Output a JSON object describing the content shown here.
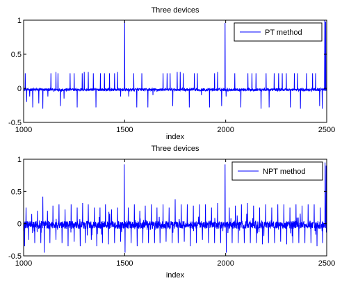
{
  "chart_data": [
    {
      "type": "line",
      "title": "Three devices",
      "xlabel": "index",
      "ylabel": "",
      "xlim": [
        1000,
        2500
      ],
      "ylim": [
        -0.5,
        1
      ],
      "xticks": [
        1000,
        1500,
        2000,
        2500
      ],
      "yticks": [
        -0.5,
        0,
        0.5,
        1
      ],
      "xtick_labels": [
        "1000",
        "1500",
        "2000",
        "2500"
      ],
      "ytick_labels": [
        "-0.5",
        "0",
        "0.5",
        "1"
      ],
      "legend_position": "top-right",
      "grid": false,
      "series": [
        {
          "name": "PT method",
          "color": "#0000ff",
          "baseline": -0.02,
          "noise": 0.02,
          "spikes": [
            [
              1008,
              0.22
            ],
            [
              1015,
              -0.2
            ],
            [
              1030,
              -0.12
            ],
            [
              1045,
              -0.28
            ],
            [
              1075,
              -0.22
            ],
            [
              1095,
              -0.3
            ],
            [
              1120,
              -0.12
            ],
            [
              1135,
              0.22
            ],
            [
              1150,
              -0.05
            ],
            [
              1160,
              0.24
            ],
            [
              1170,
              0.22
            ],
            [
              1182,
              -0.26
            ],
            [
              1200,
              -0.15
            ],
            [
              1230,
              0.22
            ],
            [
              1250,
              0.22
            ],
            [
              1265,
              -0.28
            ],
            [
              1290,
              0.22
            ],
            [
              1300,
              0.24
            ],
            [
              1320,
              0.24
            ],
            [
              1345,
              0.22
            ],
            [
              1358,
              -0.28
            ],
            [
              1380,
              0.22
            ],
            [
              1400,
              0.22
            ],
            [
              1425,
              0.22
            ],
            [
              1450,
              0.22
            ],
            [
              1465,
              0.24
            ],
            [
              1480,
              -0.12
            ],
            [
              1500,
              1.0
            ],
            [
              1520,
              -0.12
            ],
            [
              1545,
              0.22
            ],
            [
              1560,
              -0.28
            ],
            [
              1585,
              0.22
            ],
            [
              1615,
              -0.28
            ],
            [
              1640,
              -0.1
            ],
            [
              1660,
              -0.05
            ],
            [
              1690,
              0.22
            ],
            [
              1710,
              0.22
            ],
            [
              1725,
              0.22
            ],
            [
              1738,
              -0.26
            ],
            [
              1760,
              0.24
            ],
            [
              1775,
              0.24
            ],
            [
              1790,
              0.22
            ],
            [
              1820,
              -0.28
            ],
            [
              1845,
              0.22
            ],
            [
              1860,
              0.22
            ],
            [
              1880,
              -0.1
            ],
            [
              1920,
              -0.28
            ],
            [
              1945,
              0.22
            ],
            [
              1960,
              0.24
            ],
            [
              1980,
              -0.26
            ],
            [
              1997,
              0.96
            ],
            [
              2002,
              -0.12
            ],
            [
              2045,
              0.22
            ],
            [
              2075,
              -0.28
            ],
            [
              2110,
              0.22
            ],
            [
              2130,
              0.22
            ],
            [
              2150,
              0.22
            ],
            [
              2175,
              -0.3
            ],
            [
              2200,
              0.22
            ],
            [
              2215,
              -0.28
            ],
            [
              2240,
              0.22
            ],
            [
              2262,
              0.22
            ],
            [
              2280,
              0.22
            ],
            [
              2300,
              0.22
            ],
            [
              2320,
              -0.28
            ],
            [
              2340,
              0.22
            ],
            [
              2355,
              0.22
            ],
            [
              2370,
              -0.3
            ],
            [
              2400,
              0.22
            ],
            [
              2430,
              0.22
            ],
            [
              2445,
              0.22
            ],
            [
              2465,
              -0.26
            ],
            [
              2478,
              -0.3
            ],
            [
              2490,
              1.0
            ],
            [
              2495,
              0.98
            ]
          ]
        }
      ]
    },
    {
      "type": "line",
      "title": "Three devices",
      "xlabel": "index",
      "ylabel": "",
      "xlim": [
        1000,
        2500
      ],
      "ylim": [
        -0.5,
        1
      ],
      "xticks": [
        1000,
        1500,
        2000,
        2500
      ],
      "yticks": [
        -0.5,
        0,
        0.5,
        1
      ],
      "xtick_labels": [
        "1000",
        "1500",
        "2000",
        "2500"
      ],
      "ytick_labels": [
        "-0.5",
        "0",
        "0.5",
        "1"
      ],
      "legend_position": "top-right",
      "grid": false,
      "series": [
        {
          "name": "NPT method",
          "color": "#0000ff",
          "baseline": -0.02,
          "noise": 0.06,
          "spikes": [
            [
              1005,
              -0.35
            ],
            [
              1012,
              0.25
            ],
            [
              1025,
              -0.25
            ],
            [
              1040,
              0.15
            ],
            [
              1055,
              -0.3
            ],
            [
              1068,
              0.2
            ],
            [
              1085,
              -0.3
            ],
            [
              1095,
              0.42
            ],
            [
              1102,
              -0.45
            ],
            [
              1118,
              0.2
            ],
            [
              1130,
              -0.3
            ],
            [
              1145,
              0.28
            ],
            [
              1160,
              -0.25
            ],
            [
              1175,
              0.3
            ],
            [
              1190,
              -0.3
            ],
            [
              1205,
              0.22
            ],
            [
              1220,
              -0.35
            ],
            [
              1235,
              0.3
            ],
            [
              1250,
              -0.28
            ],
            [
              1265,
              0.25
            ],
            [
              1280,
              -0.35
            ],
            [
              1292,
              0.32
            ],
            [
              1305,
              -0.3
            ],
            [
              1320,
              0.3
            ],
            [
              1335,
              -0.25
            ],
            [
              1350,
              0.25
            ],
            [
              1362,
              -0.35
            ],
            [
              1378,
              0.25
            ],
            [
              1390,
              -0.3
            ],
            [
              1405,
              0.3
            ],
            [
              1420,
              -0.32
            ],
            [
              1435,
              0.22
            ],
            [
              1450,
              -0.3
            ],
            [
              1465,
              0.25
            ],
            [
              1480,
              -0.28
            ],
            [
              1498,
              0.92
            ],
            [
              1502,
              -0.45
            ],
            [
              1518,
              0.25
            ],
            [
              1532,
              -0.3
            ],
            [
              1548,
              0.3
            ],
            [
              1562,
              -0.35
            ],
            [
              1575,
              0.2
            ],
            [
              1590,
              -0.3
            ],
            [
              1602,
              0.28
            ],
            [
              1618,
              -0.3
            ],
            [
              1632,
              0.3
            ],
            [
              1648,
              -0.3
            ],
            [
              1660,
              0.25
            ],
            [
              1675,
              -0.3
            ],
            [
              1690,
              0.3
            ],
            [
              1705,
              -0.28
            ],
            [
              1720,
              0.25
            ],
            [
              1735,
              -0.3
            ],
            [
              1750,
              0.38
            ],
            [
              1765,
              -0.3
            ],
            [
              1780,
              0.3
            ],
            [
              1795,
              -0.28
            ],
            [
              1810,
              0.3
            ],
            [
              1825,
              -0.35
            ],
            [
              1840,
              0.28
            ],
            [
              1855,
              -0.3
            ],
            [
              1870,
              0.3
            ],
            [
              1885,
              -0.25
            ],
            [
              1900,
              0.3
            ],
            [
              1915,
              -0.3
            ],
            [
              1930,
              0.25
            ],
            [
              1945,
              -0.3
            ],
            [
              1960,
              0.32
            ],
            [
              1975,
              -0.3
            ],
            [
              1997,
              0.92
            ],
            [
              2003,
              -0.45
            ],
            [
              2018,
              0.25
            ],
            [
              2032,
              -0.3
            ],
            [
              2048,
              0.28
            ],
            [
              2062,
              -0.3
            ],
            [
              2078,
              0.3
            ],
            [
              2092,
              -0.3
            ],
            [
              2108,
              0.32
            ],
            [
              2122,
              -0.3
            ],
            [
              2138,
              0.28
            ],
            [
              2152,
              -0.3
            ],
            [
              2168,
              0.25
            ],
            [
              2182,
              -0.32
            ],
            [
              2198,
              0.3
            ],
            [
              2212,
              -0.3
            ],
            [
              2228,
              0.25
            ],
            [
              2242,
              -0.3
            ],
            [
              2258,
              0.3
            ],
            [
              2272,
              -0.28
            ],
            [
              2288,
              0.3
            ],
            [
              2302,
              -0.32
            ],
            [
              2318,
              0.25
            ],
            [
              2332,
              -0.3
            ],
            [
              2348,
              0.3
            ],
            [
              2362,
              -0.3
            ],
            [
              2378,
              0.28
            ],
            [
              2392,
              -0.3
            ],
            [
              2408,
              0.3
            ],
            [
              2422,
              -0.3
            ],
            [
              2438,
              0.3
            ],
            [
              2452,
              -0.35
            ],
            [
              2468,
              0.25
            ],
            [
              2480,
              -0.3
            ],
            [
              2492,
              0.95
            ],
            [
              2497,
              0.9
            ]
          ]
        }
      ]
    }
  ]
}
